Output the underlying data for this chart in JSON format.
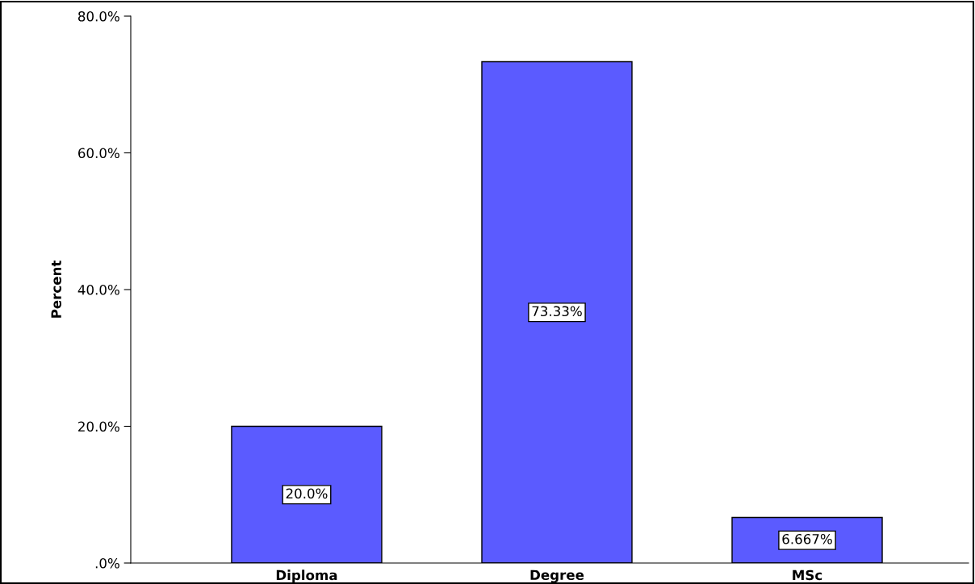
{
  "chart_data": {
    "type": "bar",
    "ylabel": "Percent",
    "categories": [
      "Diploma",
      "Degree",
      "MSc"
    ],
    "values": [
      20.0,
      73.33,
      6.667
    ],
    "value_labels": [
      "20.0%",
      "73.33%",
      "6.667%"
    ],
    "color": "#5b5bff",
    "ylim": [
      0,
      80
    ],
    "yticks": [
      {
        "value": 0,
        "label": ".0%"
      },
      {
        "value": 20,
        "label": "20.0%"
      },
      {
        "value": 40,
        "label": "40.0%"
      },
      {
        "value": 60,
        "label": "60.0%"
      },
      {
        "value": 80,
        "label": "80.0%"
      }
    ],
    "grid": false,
    "legend": false
  }
}
